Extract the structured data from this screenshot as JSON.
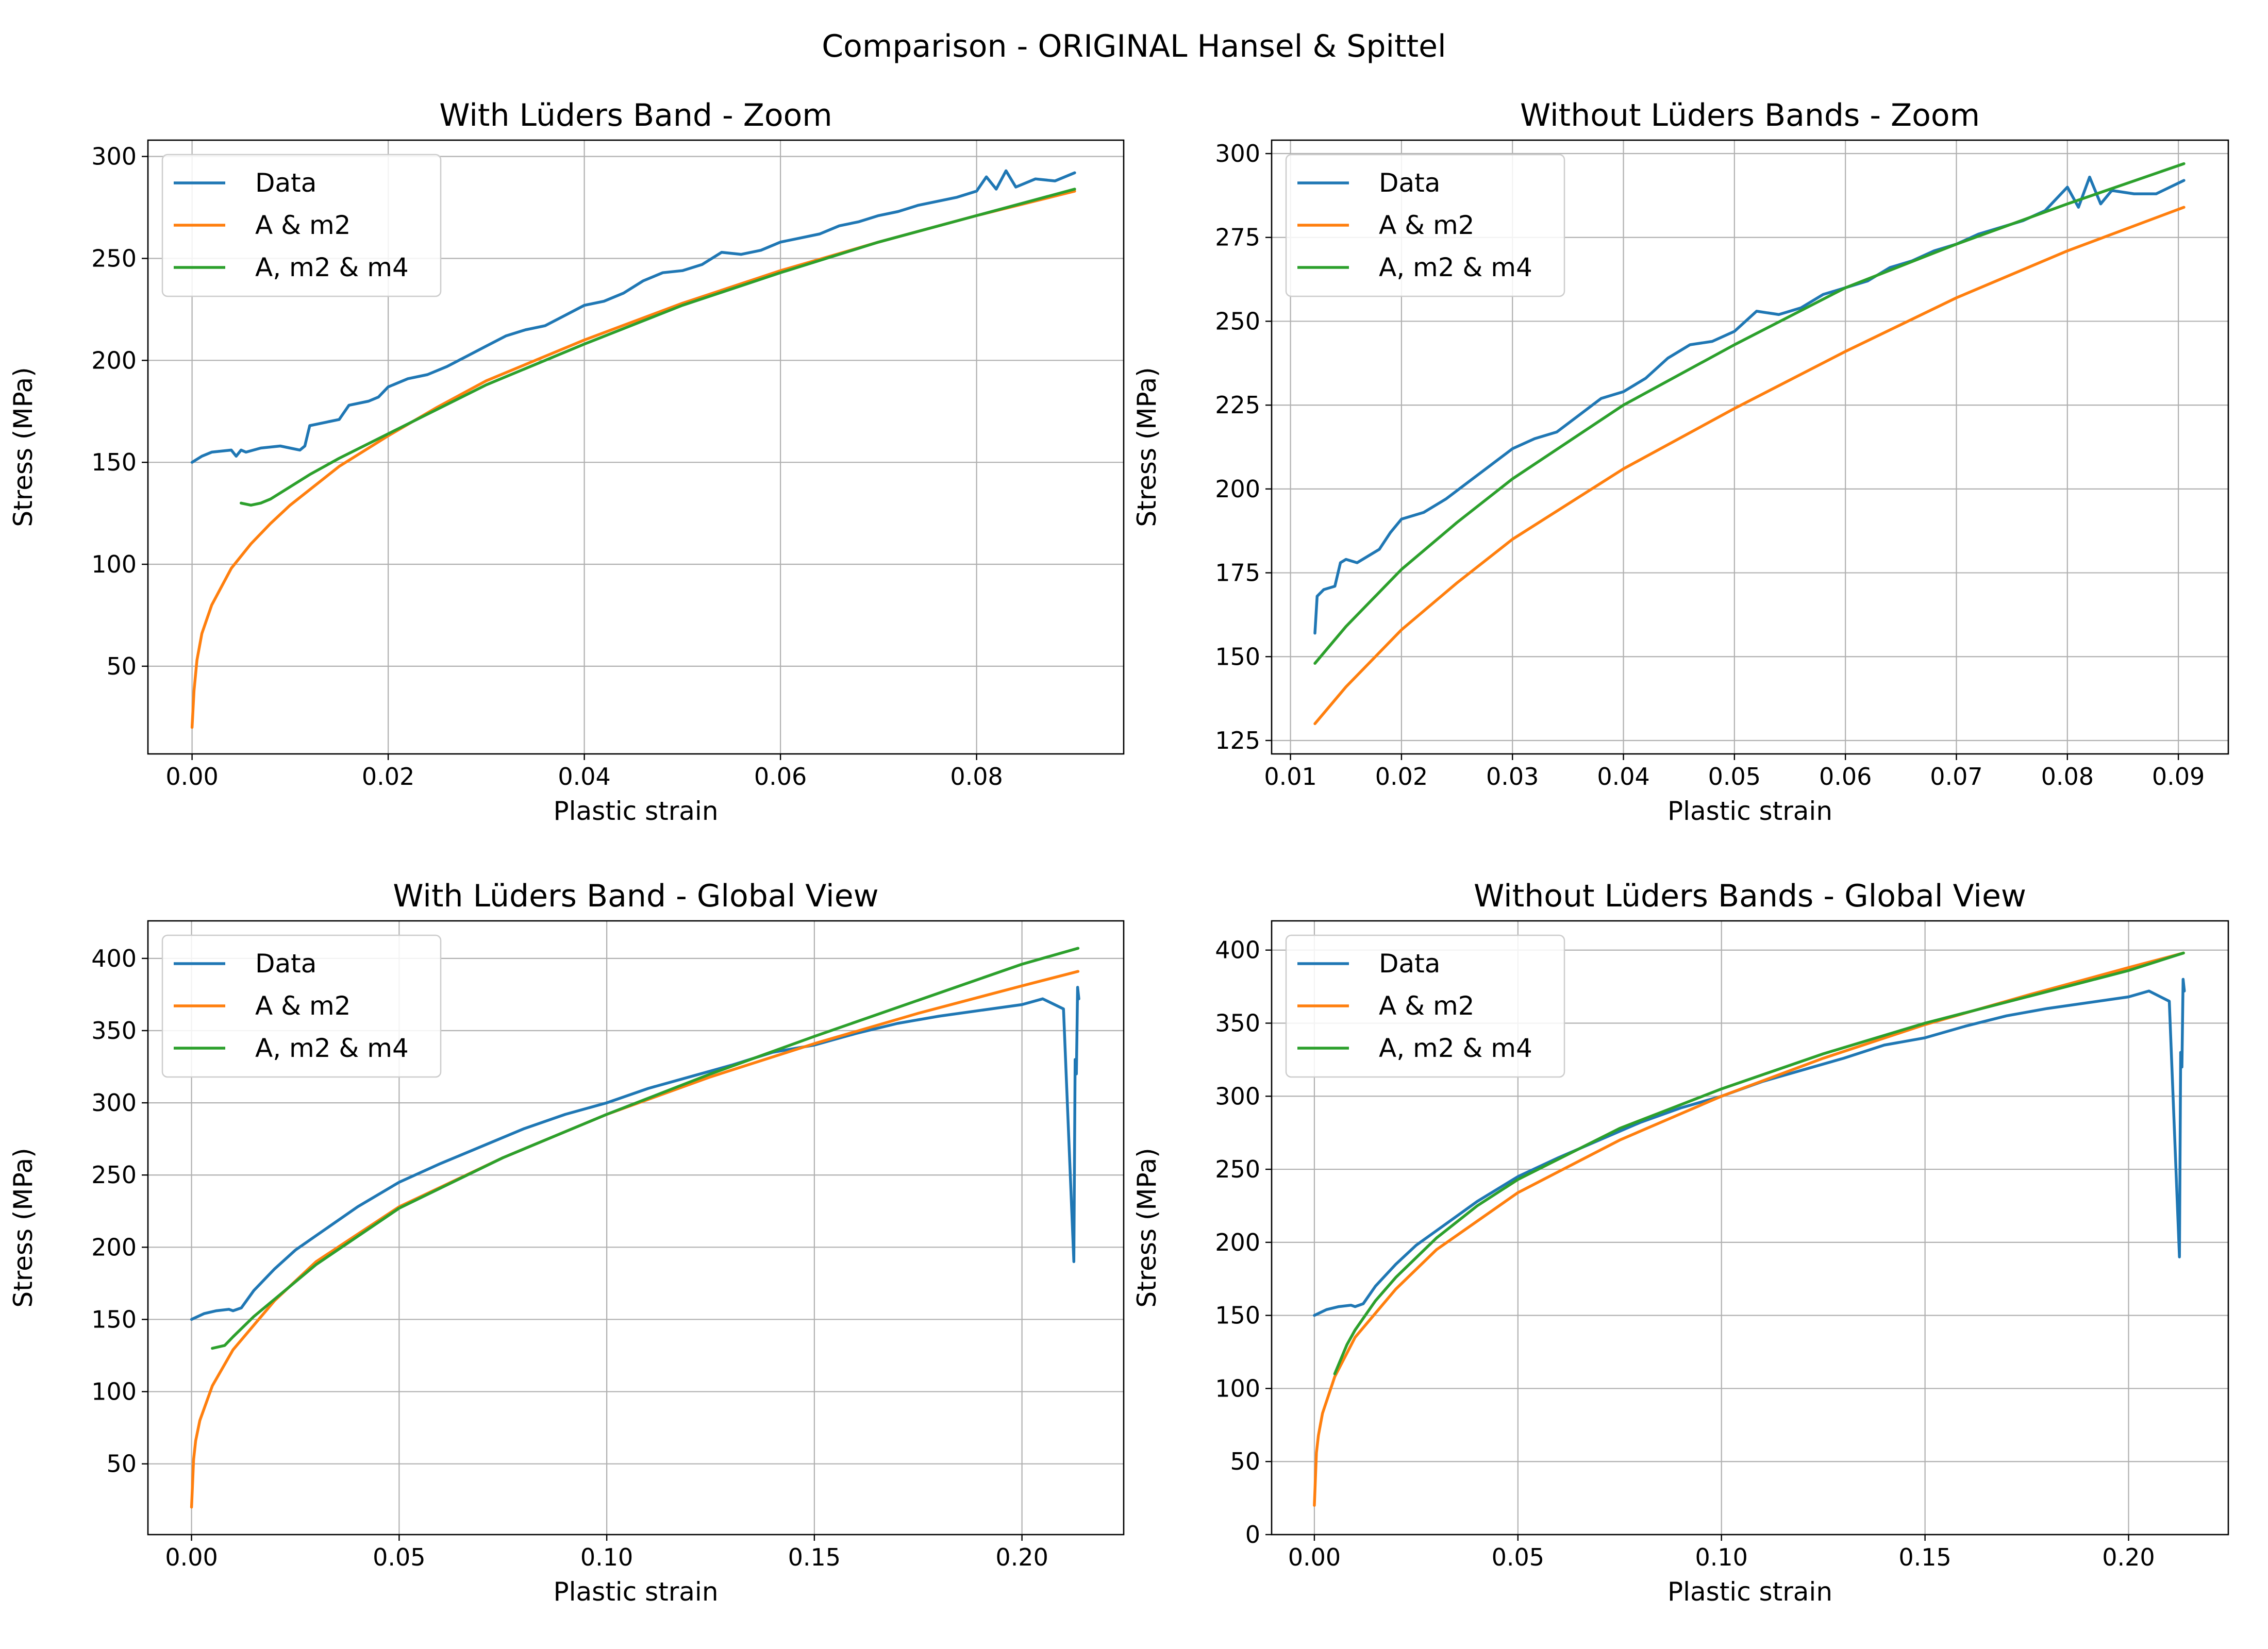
{
  "figure": {
    "suptitle": "Comparison - ORIGINAL Hansel & Spittel"
  },
  "colors": {
    "Data": "#1f77b4",
    "A & m2": "#ff7f0e",
    "A, m2 & m4": "#2ca02c"
  },
  "chart_data": [
    {
      "type": "line",
      "title": "With Lüders Band - Zoom",
      "xlabel": "Plastic strain",
      "ylabel": "Stress (MPa)",
      "xlim": [
        -0.0045,
        0.095
      ],
      "ylim": [
        7,
        308
      ],
      "xticks": [
        0.0,
        0.02,
        0.04,
        0.06,
        0.08
      ],
      "xtick_labels": [
        "0.00",
        "0.02",
        "0.04",
        "0.06",
        "0.08"
      ],
      "yticks": [
        50,
        100,
        150,
        200,
        250,
        300
      ],
      "ytick_labels": [
        "50",
        "100",
        "150",
        "200",
        "250",
        "300"
      ],
      "grid": true,
      "legend": "upper left",
      "series": [
        {
          "name": "Data",
          "x": [
            0.0,
            0.001,
            0.002,
            0.004,
            0.0045,
            0.005,
            0.0055,
            0.007,
            0.009,
            0.01,
            0.011,
            0.0115,
            0.012,
            0.014,
            0.015,
            0.016,
            0.018,
            0.019,
            0.02,
            0.022,
            0.024,
            0.026,
            0.028,
            0.03,
            0.032,
            0.034,
            0.036,
            0.038,
            0.04,
            0.042,
            0.044,
            0.046,
            0.048,
            0.05,
            0.052,
            0.054,
            0.056,
            0.058,
            0.06,
            0.062,
            0.064,
            0.066,
            0.068,
            0.07,
            0.072,
            0.074,
            0.076,
            0.078,
            0.08,
            0.081,
            0.082,
            0.083,
            0.084,
            0.086,
            0.088,
            0.09
          ],
          "y": [
            150,
            153,
            155,
            156,
            153,
            156,
            155,
            157,
            158,
            157,
            156,
            158,
            168,
            170,
            171,
            178,
            180,
            182,
            187,
            191,
            193,
            197,
            202,
            207,
            212,
            215,
            217,
            222,
            227,
            229,
            233,
            239,
            243,
            244,
            247,
            253,
            252,
            254,
            258,
            260,
            262,
            266,
            268,
            271,
            273,
            276,
            278,
            280,
            283,
            290,
            284,
            293,
            285,
            289,
            288,
            292
          ]
        },
        {
          "name": "A & m2",
          "x": [
            0.0,
            0.0002,
            0.0005,
            0.001,
            0.002,
            0.004,
            0.006,
            0.008,
            0.01,
            0.015,
            0.02,
            0.025,
            0.03,
            0.04,
            0.05,
            0.06,
            0.07,
            0.08,
            0.09
          ],
          "y": [
            20,
            38,
            53,
            66,
            80,
            98,
            110,
            120,
            129,
            148,
            163,
            177,
            190,
            210,
            228,
            244,
            258,
            271,
            283
          ]
        },
        {
          "name": "A, m2 & m4",
          "x": [
            0.005,
            0.006,
            0.007,
            0.008,
            0.01,
            0.012,
            0.015,
            0.02,
            0.025,
            0.03,
            0.04,
            0.05,
            0.06,
            0.07,
            0.08,
            0.09
          ],
          "y": [
            130,
            129,
            130,
            132,
            138,
            144,
            152,
            164,
            176,
            188,
            208,
            227,
            243,
            258,
            271,
            284
          ]
        }
      ]
    },
    {
      "type": "line",
      "title": "Without Lüders Bands - Zoom",
      "xlabel": "Plastic strain",
      "ylabel": "Stress (MPa)",
      "xlim": [
        0.0083,
        0.0945
      ],
      "ylim": [
        121,
        304
      ],
      "xticks": [
        0.01,
        0.02,
        0.03,
        0.04,
        0.05,
        0.06,
        0.07,
        0.08,
        0.09
      ],
      "xtick_labels": [
        "0.01",
        "0.02",
        "0.03",
        "0.04",
        "0.05",
        "0.06",
        "0.07",
        "0.08",
        "0.09"
      ],
      "yticks": [
        125,
        150,
        175,
        200,
        225,
        250,
        275,
        300
      ],
      "ytick_labels": [
        "125",
        "150",
        "175",
        "200",
        "225",
        "250",
        "275",
        "300"
      ],
      "grid": true,
      "legend": "upper left",
      "series": [
        {
          "name": "Data",
          "x": [
            0.0122,
            0.0124,
            0.013,
            0.014,
            0.0145,
            0.015,
            0.016,
            0.018,
            0.019,
            0.02,
            0.022,
            0.024,
            0.026,
            0.028,
            0.03,
            0.032,
            0.034,
            0.036,
            0.038,
            0.04,
            0.042,
            0.044,
            0.046,
            0.048,
            0.05,
            0.052,
            0.054,
            0.056,
            0.058,
            0.06,
            0.062,
            0.064,
            0.066,
            0.068,
            0.07,
            0.072,
            0.074,
            0.076,
            0.078,
            0.08,
            0.081,
            0.082,
            0.083,
            0.084,
            0.086,
            0.088,
            0.0905
          ],
          "y": [
            157,
            168,
            170,
            171,
            178,
            179,
            178,
            182,
            187,
            191,
            193,
            197,
            202,
            207,
            212,
            215,
            217,
            222,
            227,
            229,
            233,
            239,
            243,
            244,
            247,
            253,
            252,
            254,
            258,
            260,
            262,
            266,
            268,
            271,
            273,
            276,
            278,
            280,
            283,
            290,
            284,
            293,
            285,
            289,
            288,
            288,
            292
          ]
        },
        {
          "name": "A & m2",
          "x": [
            0.0122,
            0.015,
            0.02,
            0.025,
            0.03,
            0.04,
            0.05,
            0.06,
            0.07,
            0.08,
            0.0905
          ],
          "y": [
            130,
            141,
            158,
            172,
            185,
            206,
            224,
            241,
            257,
            271,
            284
          ]
        },
        {
          "name": "A, m2 & m4",
          "x": [
            0.0122,
            0.015,
            0.02,
            0.025,
            0.03,
            0.04,
            0.05,
            0.06,
            0.07,
            0.08,
            0.0905
          ],
          "y": [
            148,
            159,
            176,
            190,
            203,
            225,
            243,
            260,
            273,
            285,
            297
          ]
        }
      ]
    },
    {
      "type": "line",
      "title": "With Lüders Band - Global View",
      "xlabel": "Plastic strain",
      "ylabel": "Stress (MPa)",
      "xlim": [
        -0.0105,
        0.2245
      ],
      "ylim": [
        1,
        426
      ],
      "xticks": [
        0.0,
        0.05,
        0.1,
        0.15,
        0.2
      ],
      "xtick_labels": [
        "0.00",
        "0.05",
        "0.10",
        "0.15",
        "0.20"
      ],
      "yticks": [
        50,
        100,
        150,
        200,
        250,
        300,
        350,
        400
      ],
      "ytick_labels": [
        "50",
        "100",
        "150",
        "200",
        "250",
        "300",
        "350",
        "400"
      ],
      "grid": true,
      "legend": "upper left",
      "series": [
        {
          "name": "Data",
          "x": [
            0.0,
            0.003,
            0.006,
            0.009,
            0.01,
            0.012,
            0.015,
            0.02,
            0.025,
            0.03,
            0.04,
            0.05,
            0.06,
            0.07,
            0.08,
            0.09,
            0.1,
            0.11,
            0.12,
            0.13,
            0.14,
            0.15,
            0.16,
            0.17,
            0.18,
            0.19,
            0.2,
            0.205,
            0.21,
            0.2125,
            0.2128,
            0.2131,
            0.2134,
            0.2137
          ],
          "y": [
            150,
            154,
            156,
            157,
            156,
            158,
            170,
            185,
            198,
            208,
            228,
            245,
            258,
            270,
            282,
            292,
            300,
            310,
            318,
            326,
            335,
            340,
            348,
            355,
            360,
            364,
            368,
            372,
            365,
            190,
            330,
            320,
            380,
            372
          ]
        },
        {
          "name": "A & m2",
          "x": [
            0.0,
            0.0005,
            0.001,
            0.002,
            0.005,
            0.01,
            0.02,
            0.03,
            0.05,
            0.075,
            0.1,
            0.125,
            0.15,
            0.175,
            0.2,
            0.2135
          ],
          "y": [
            20,
            53,
            66,
            80,
            104,
            129,
            163,
            190,
            228,
            262,
            292,
            318,
            341,
            362,
            381,
            391
          ]
        },
        {
          "name": "A, m2 & m4",
          "x": [
            0.005,
            0.008,
            0.01,
            0.015,
            0.02,
            0.03,
            0.05,
            0.075,
            0.1,
            0.125,
            0.15,
            0.175,
            0.2,
            0.2135
          ],
          "y": [
            130,
            132,
            138,
            152,
            164,
            188,
            227,
            262,
            292,
            320,
            346,
            371,
            396,
            407
          ]
        }
      ]
    },
    {
      "type": "line",
      "title": "Without Lüders Bands - Global View",
      "xlabel": "Plastic strain",
      "ylabel": "Stress (MPa)",
      "xlim": [
        -0.0105,
        0.2245
      ],
      "ylim": [
        0,
        420
      ],
      "xticks": [
        0.0,
        0.05,
        0.1,
        0.15,
        0.2
      ],
      "xtick_labels": [
        "0.00",
        "0.05",
        "0.10",
        "0.15",
        "0.20"
      ],
      "yticks": [
        0,
        50,
        100,
        150,
        200,
        250,
        300,
        350,
        400
      ],
      "ytick_labels": [
        "0",
        "50",
        "100",
        "150",
        "200",
        "250",
        "300",
        "350",
        "400"
      ],
      "grid": true,
      "legend": "upper left",
      "series": [
        {
          "name": "Data",
          "x": [
            0.0,
            0.003,
            0.006,
            0.009,
            0.01,
            0.012,
            0.015,
            0.02,
            0.025,
            0.03,
            0.04,
            0.05,
            0.06,
            0.07,
            0.08,
            0.09,
            0.1,
            0.11,
            0.12,
            0.13,
            0.14,
            0.15,
            0.16,
            0.17,
            0.18,
            0.19,
            0.2,
            0.205,
            0.21,
            0.2125,
            0.2128,
            0.2131,
            0.2134,
            0.2137
          ],
          "y": [
            150,
            154,
            156,
            157,
            156,
            158,
            170,
            185,
            198,
            208,
            228,
            245,
            258,
            270,
            282,
            292,
            300,
            310,
            318,
            326,
            335,
            340,
            348,
            355,
            360,
            364,
            368,
            372,
            365,
            190,
            330,
            320,
            380,
            372
          ]
        },
        {
          "name": "A & m2",
          "x": [
            0.0,
            0.0005,
            0.001,
            0.002,
            0.005,
            0.01,
            0.02,
            0.03,
            0.05,
            0.075,
            0.1,
            0.125,
            0.15,
            0.175,
            0.2,
            0.2135
          ],
          "y": [
            20,
            56,
            68,
            83,
            108,
            135,
            168,
            195,
            234,
            270,
            300,
            326,
            349,
            369,
            388,
            398
          ]
        },
        {
          "name": "A, m2 & m4",
          "x": [
            0.005,
            0.008,
            0.01,
            0.015,
            0.02,
            0.03,
            0.04,
            0.05,
            0.075,
            0.1,
            0.125,
            0.15,
            0.175,
            0.2,
            0.2135
          ],
          "y": [
            110,
            130,
            140,
            160,
            176,
            203,
            225,
            243,
            278,
            305,
            329,
            350,
            368,
            386,
            398
          ]
        }
      ]
    }
  ]
}
